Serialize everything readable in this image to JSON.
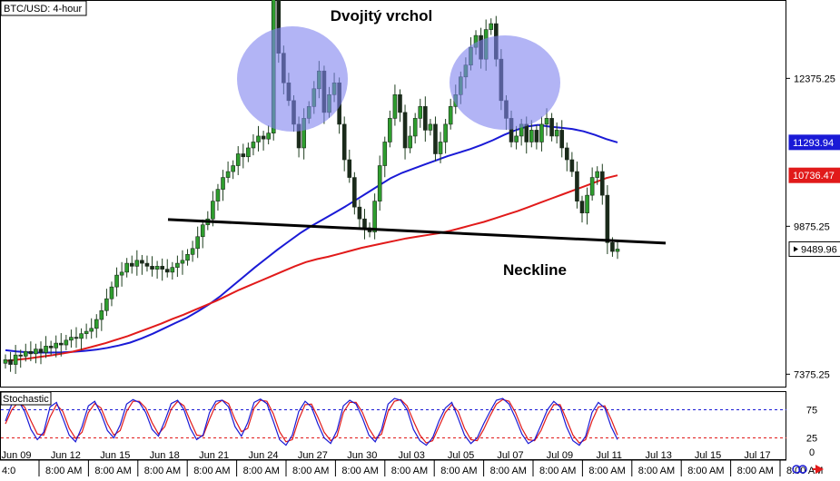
{
  "chart_data": [
    {
      "type": "candlestick",
      "title": "BTC/USD: 4-hour",
      "annotations": {
        "pattern_label": "Dvojitý vrchol",
        "neckline_label": "Neckline"
      },
      "y_ticks": [
        "12375.25",
        "9875.25",
        "7375.25"
      ],
      "ylim": [
        7150,
        13700
      ],
      "price_badges": [
        {
          "label": "11293.94",
          "value": 11293.94,
          "color": "#1a1ad6",
          "series": "sma-blue"
        },
        {
          "label": "10736.47",
          "value": 10736.47,
          "color": "#e11a1a",
          "series": "sma-red"
        },
        {
          "label": "9489.96",
          "value": 9489.96,
          "color": "#000000",
          "series": "price"
        }
      ],
      "x_ticks_date": [
        "Jun 09",
        "Jun 12",
        "Jun 15",
        "Jun 18",
        "Jun 21",
        "Jun 24",
        "Jun 27",
        "Jun 30",
        "Jul 03",
        "Jul 05",
        "Jul 07",
        "Jul 09",
        "Jul 11",
        "Jul 13",
        "Jul 15",
        "Jul 17"
      ],
      "x_ticks_time": [
        "8:00 AM",
        "8:00 AM",
        "8:00 AM",
        "8:00 AM",
        "8:00 AM",
        "8:00 AM",
        "8:00 AM",
        "8:00 AM",
        "8:00 AM",
        "8:00 AM",
        "8:00 AM",
        "8:00 AM",
        "8:00 AM",
        "8:00 AM",
        "8:00 AM",
        "8:00 AM"
      ],
      "x_time_first": "4:0",
      "closes": [
        7620,
        7540,
        7700,
        7680,
        7760,
        7720,
        7800,
        7740,
        7850,
        7820,
        7900,
        7870,
        7950,
        8000,
        7980,
        8060,
        8100,
        8150,
        8300,
        8450,
        8650,
        8850,
        9050,
        9100,
        9250,
        9200,
        9300,
        9250,
        9200,
        9150,
        9200,
        9150,
        9100,
        9180,
        9250,
        9300,
        9400,
        9500,
        9700,
        9900,
        10000,
        10300,
        10500,
        10700,
        10800,
        10900,
        11100,
        11050,
        11200,
        11300,
        11400,
        11350,
        11450,
        13800,
        12800,
        12300,
        12000,
        11600,
        11200,
        11700,
        11900,
        12200,
        12500,
        11800,
        12100,
        12300,
        11600,
        11000,
        10700,
        10200,
        10000,
        9850,
        9780,
        10300,
        10900,
        11300,
        11700,
        12100,
        11800,
        11200,
        11400,
        11700,
        11900,
        11500,
        11600,
        11100,
        11300,
        11600,
        11900,
        12100,
        12400,
        12600,
        12900,
        13100,
        12700,
        13200,
        13300,
        12700,
        12000,
        11700,
        11300,
        11400,
        11600,
        11300,
        11500,
        11300,
        11600,
        11700,
        11400,
        11500,
        11200,
        11000,
        10800,
        10300,
        10100,
        10400,
        10700,
        10800,
        10400,
        9600,
        9450,
        9489.96
      ],
      "overlays": [
        {
          "name": "",
          "color": "#1a1ad6",
          "values": [
            7780,
            7760,
            7745,
            7740,
            7740,
            7745,
            7755,
            7770,
            7790,
            7820,
            7860,
            7910,
            7980,
            8060,
            8150,
            8240,
            8330,
            8440,
            8560,
            8700,
            8860,
            9020,
            9180,
            9330,
            9480,
            9620,
            9760,
            9880,
            9990,
            10100,
            10210,
            10330,
            10450,
            10570,
            10690,
            10780,
            10850,
            10920,
            10990,
            11060,
            11120,
            11180,
            11250,
            11330,
            11420,
            11500,
            11560,
            11590,
            11560,
            11540,
            11520,
            11480,
            11420,
            11350,
            11293.94
          ]
        },
        {
          "name": "",
          "color": "#e11a1a",
          "values": [
            7600,
            7620,
            7640,
            7665,
            7690,
            7720,
            7755,
            7800,
            7850,
            7900,
            7960,
            8020,
            8090,
            8160,
            8230,
            8310,
            8380,
            8460,
            8540,
            8620,
            8710,
            8800,
            8880,
            8960,
            9040,
            9120,
            9200,
            9270,
            9320,
            9360,
            9410,
            9460,
            9510,
            9550,
            9590,
            9630,
            9670,
            9700,
            9730,
            9760,
            9800,
            9850,
            9900,
            9950,
            10010,
            10070,
            10130,
            10200,
            10270,
            10340,
            10410,
            10480,
            10550,
            10620,
            10690,
            10736.47
          ]
        }
      ],
      "neckline": {
        "start": 9990,
        "end": 9590
      },
      "stochastic": {
        "label": "Stochastic",
        "levels": [
          75,
          25
        ],
        "y_ticks": [
          "75",
          "25",
          "0"
        ],
        "k": [
          55,
          85,
          92,
          72,
          40,
          22,
          35,
          80,
          88,
          60,
          30,
          18,
          45,
          82,
          90,
          68,
          38,
          25,
          48,
          85,
          93,
          88,
          70,
          40,
          28,
          55,
          86,
          92,
          75,
          42,
          22,
          30,
          70,
          90,
          92,
          80,
          45,
          28,
          52,
          88,
          94,
          86,
          55,
          22,
          12,
          30,
          72,
          90,
          80,
          50,
          25,
          15,
          38,
          82,
          92,
          85,
          60,
          30,
          18,
          40,
          85,
          95,
          92,
          75,
          40,
          20,
          12,
          25,
          55,
          78,
          88,
          60,
          30,
          15,
          25,
          50,
          72,
          92,
          95,
          85,
          60,
          32,
          15,
          22,
          48,
          75,
          90,
          80,
          45,
          20,
          12,
          28,
          70,
          88,
          78,
          45,
          22
        ],
        "d": [
          50,
          75,
          88,
          80,
          55,
          32,
          30,
          62,
          84,
          72,
          42,
          24,
          35,
          70,
          86,
          78,
          50,
          30,
          38,
          72,
          90,
          90,
          78,
          52,
          32,
          45,
          76,
          90,
          82,
          55,
          30,
          28,
          58,
          84,
          92,
          86,
          58,
          36,
          42,
          78,
          92,
          90,
          68,
          36,
          18,
          22,
          58,
          84,
          85,
          62,
          35,
          20,
          28,
          70,
          88,
          88,
          70,
          42,
          24,
          32,
          72,
          90,
          93,
          82,
          55,
          30,
          16,
          20,
          45,
          70,
          84,
          72,
          42,
          22,
          20,
          40,
          64,
          85,
          93,
          90,
          70,
          42,
          22,
          20,
          38,
          65,
          84,
          84,
          58,
          30,
          16,
          22,
          55,
          80,
          82,
          58,
          30
        ]
      }
    }
  ]
}
